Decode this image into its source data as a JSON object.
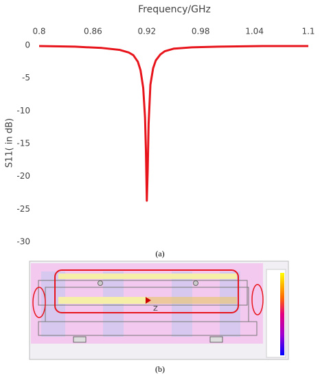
{
  "chart_data": {
    "type": "line",
    "xlabel": "Frequency/GHz",
    "ylabel": "S11( in dB)",
    "x": [
      0.8,
      0.84,
      0.87,
      0.89,
      0.9,
      0.905,
      0.91,
      0.913,
      0.916,
      0.918,
      0.919,
      0.92,
      0.921,
      0.922,
      0.924,
      0.927,
      0.93,
      0.935,
      0.94,
      0.95,
      0.97,
      1.0,
      1.05,
      1.1
    ],
    "values": [
      -0.1,
      -0.2,
      -0.4,
      -0.7,
      -1.1,
      -1.5,
      -2.5,
      -3.8,
      -6.5,
      -11,
      -16,
      -23.7,
      -19,
      -12,
      -6,
      -3.5,
      -2.3,
      -1.4,
      -0.9,
      -0.5,
      -0.3,
      -0.2,
      -0.1,
      -0.1
    ],
    "color": "#e8141b",
    "xlim": [
      0.8,
      1.1
    ],
    "xticks": [
      0.8,
      0.86,
      0.92,
      0.98,
      1.04,
      1.1
    ],
    "ylim": [
      -30,
      0
    ],
    "yticks": [
      0,
      -5,
      -10,
      -15,
      -20,
      -25,
      -30
    ],
    "grid": false,
    "caption": "(a)"
  },
  "image": {
    "axis_label": "Z",
    "caption": "(b)"
  }
}
